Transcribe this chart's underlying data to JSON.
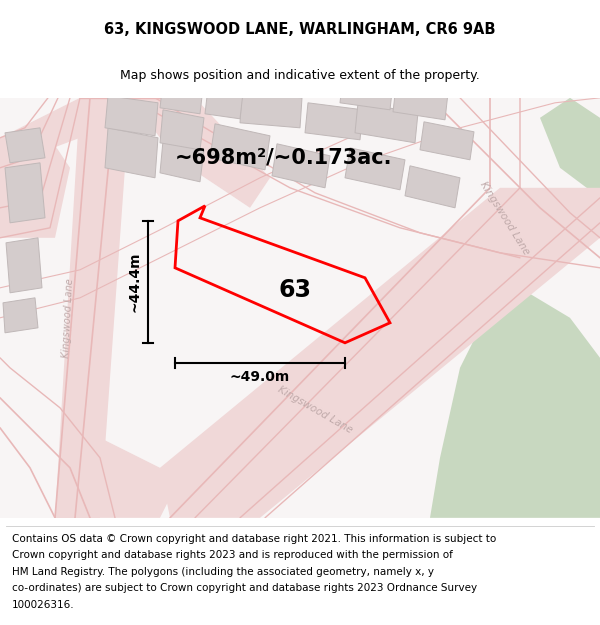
{
  "title": "63, KINGSWOOD LANE, WARLINGHAM, CR6 9AB",
  "subtitle": "Map shows position and indicative extent of the property.",
  "area_text": "~698m²/~0.173ac.",
  "label_63": "63",
  "dim_height": "~44.4m",
  "dim_width": "~49.0m",
  "footer_lines": [
    "Contains OS data © Crown copyright and database right 2021. This information is subject to",
    "Crown copyright and database rights 2023 and is reproduced with the permission of",
    "HM Land Registry. The polygons (including the associated geometry, namely x, y",
    "co-ordinates) are subject to Crown copyright and database rights 2023 Ordnance Survey",
    "100026316."
  ],
  "map_bg": "#f9f6f6",
  "road_fill": "#f0d8d8",
  "road_line": "#e8b8b8",
  "building_fill": "#d4cccc",
  "building_edge": "#c0b8b8",
  "green_fill": "#ccdccc",
  "plot_color": "#ff0000",
  "white": "#ffffff",
  "title_fontsize": 10.5,
  "subtitle_fontsize": 9,
  "area_fontsize": 15,
  "label_fontsize": 17,
  "footer_fontsize": 7.5,
  "road_label_fontsize": 7.5,
  "dim_fontsize": 10,
  "road_label_color": "#c0aaaa",
  "kingswood_right_text": "Kingswood Lane",
  "kingswood_bottom_text": "Kingswood Lane",
  "kingswood_left_text": "Kingswood Lane"
}
